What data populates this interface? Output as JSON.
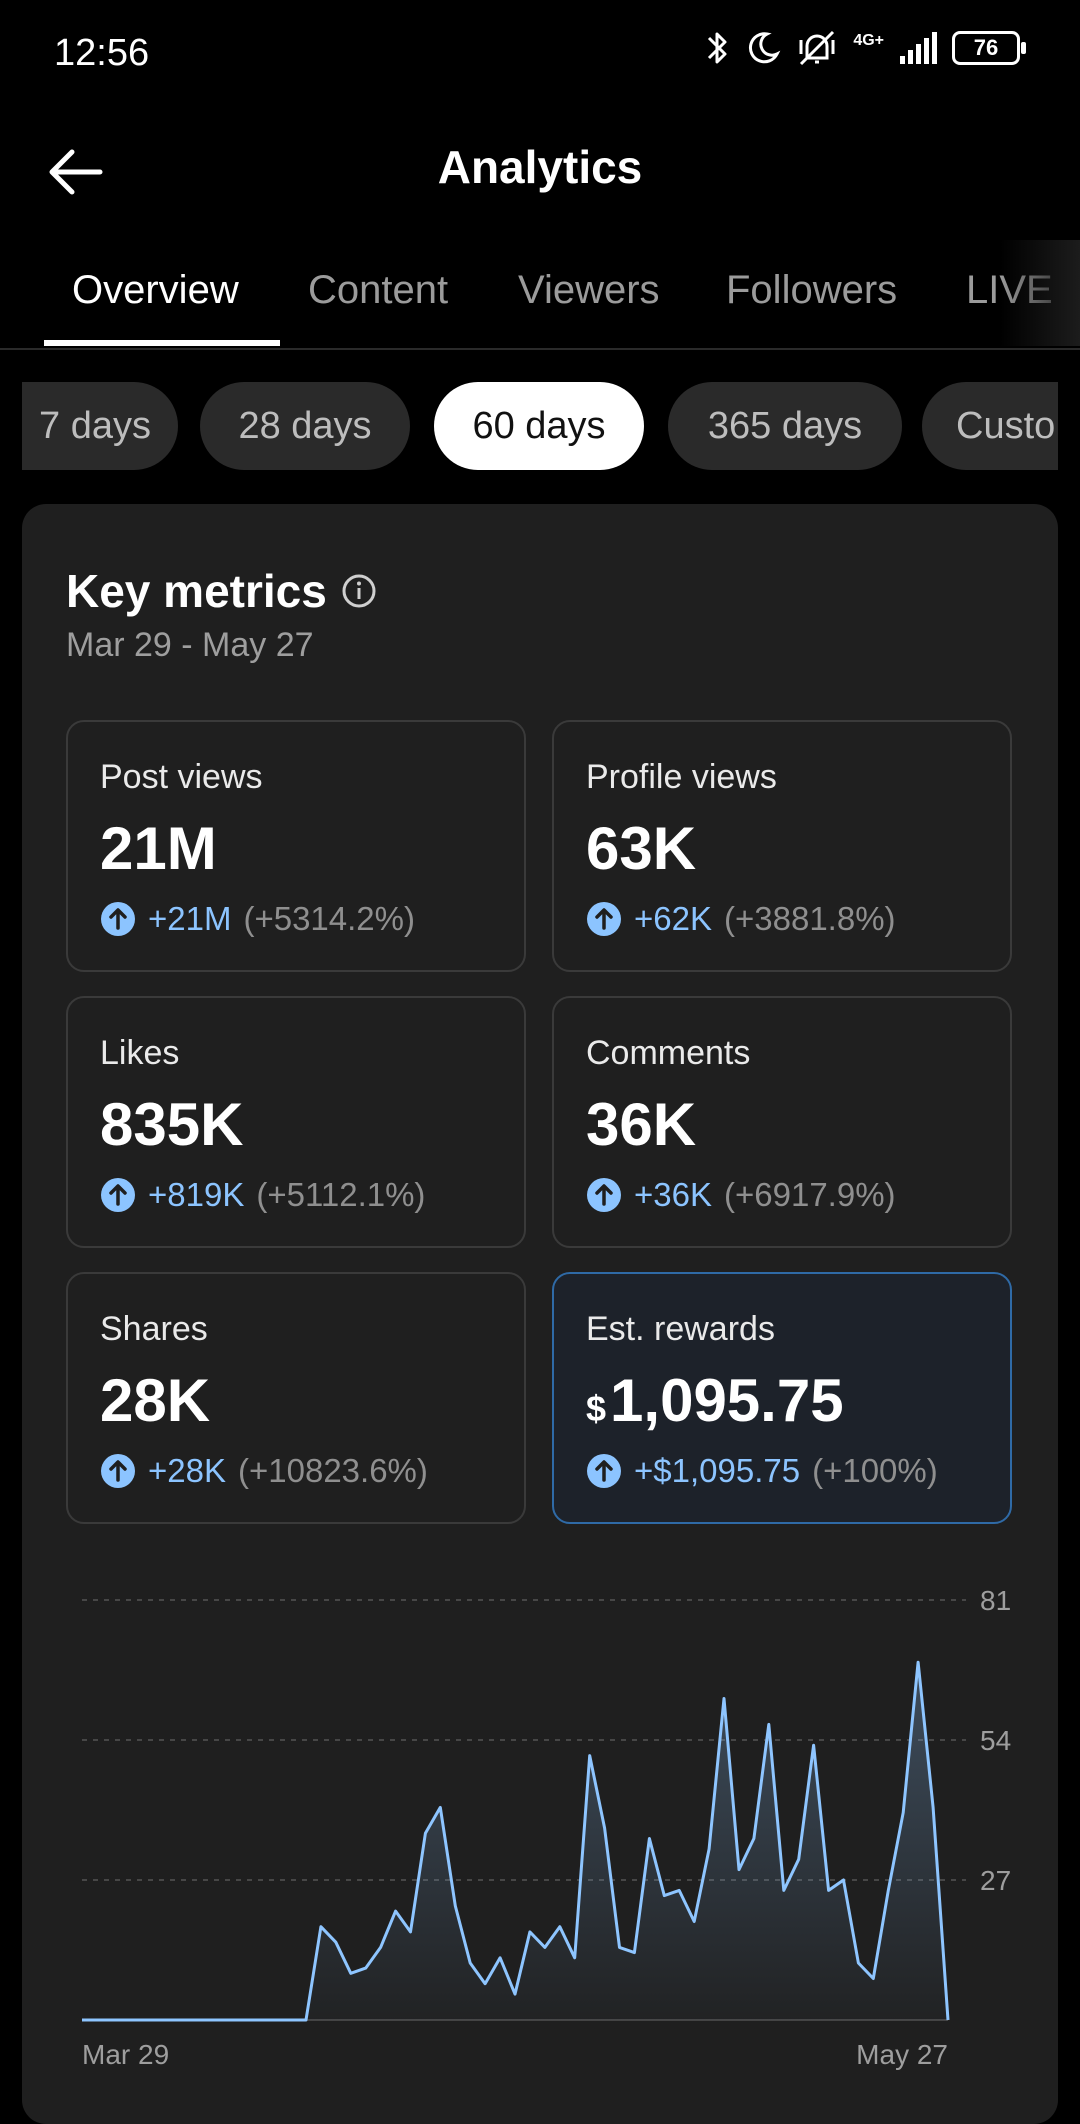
{
  "status_bar": {
    "time": "12:56",
    "network": "4G+",
    "battery": "76",
    "icons": [
      "bluetooth-icon",
      "moon-icon",
      "vibrate-icon",
      "signal-icon",
      "battery-icon"
    ]
  },
  "header": {
    "title": "Analytics",
    "back_icon": "arrow-left-icon"
  },
  "tabs": [
    {
      "label": "Overview",
      "active": true
    },
    {
      "label": "Content"
    },
    {
      "label": "Viewers"
    },
    {
      "label": "Followers"
    },
    {
      "label": "LIVE"
    }
  ],
  "ranges": [
    {
      "label": "7 days"
    },
    {
      "label": "28 days"
    },
    {
      "label": "60 days",
      "active": true
    },
    {
      "label": "365 days"
    },
    {
      "label": "Custo"
    }
  ],
  "key_metrics": {
    "title": "Key metrics",
    "date_range": "Mar 29 - May 27",
    "items": [
      {
        "label": "Post views",
        "value": "21M",
        "change": "+21M",
        "pct": "(+5314.2%)"
      },
      {
        "label": "Profile views",
        "value": "63K",
        "change": "+62K",
        "pct": "(+3881.8%)"
      },
      {
        "label": "Likes",
        "value": "835K",
        "change": "+819K",
        "pct": "(+5112.1%)"
      },
      {
        "label": "Comments",
        "value": "36K",
        "change": "+36K",
        "pct": "(+6917.9%)"
      },
      {
        "label": "Shares",
        "value": "28K",
        "change": "+28K",
        "pct": "(+10823.6%)"
      },
      {
        "label": "Est. rewards",
        "currency": "$",
        "value": "1,095.75",
        "change": "+$1,095.75",
        "pct": "(+100%)",
        "highlighted": true
      }
    ]
  },
  "colors": {
    "accent": "#8cc4ff",
    "line": "#8ec5ff",
    "highlight_border": "#2f6aa6"
  },
  "chart_data": {
    "type": "area",
    "x_start_label": "Mar 29",
    "x_end_label": "May 27",
    "yticks": [
      81,
      54,
      27
    ],
    "ylim": [
      0,
      81
    ],
    "values": [
      0,
      0,
      0,
      0,
      0,
      0,
      0,
      0,
      0,
      0,
      0,
      0,
      0,
      0,
      0,
      0,
      18,
      15,
      9,
      10,
      14,
      21,
      17,
      36,
      41,
      22,
      11,
      7,
      12,
      5,
      17,
      14,
      18,
      12,
      51,
      37,
      14,
      13,
      35,
      24,
      25,
      19,
      33,
      62,
      29,
      35,
      57,
      25,
      31,
      53,
      25,
      27,
      11,
      8,
      25,
      40,
      69,
      41,
      0
    ]
  }
}
